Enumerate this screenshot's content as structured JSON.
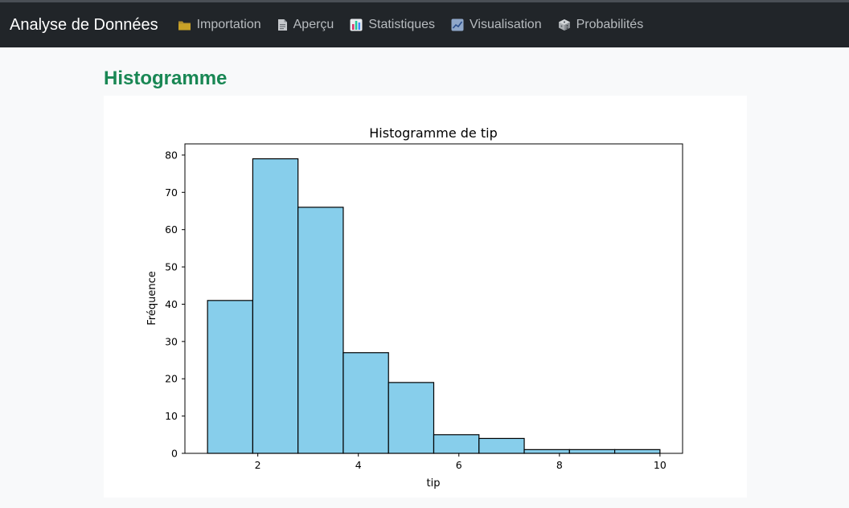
{
  "navbar": {
    "brand": "Analyse de Données",
    "items": [
      {
        "label": "Importation",
        "icon": "folder-icon",
        "color": "#c9a227"
      },
      {
        "label": "Aperçu",
        "icon": "page-icon",
        "color": "#c6c9cc"
      },
      {
        "label": "Statistiques",
        "icon": "bar-chart-icon",
        "color": "#d6336c"
      },
      {
        "label": "Visualisation",
        "icon": "line-chart-icon",
        "color": "#8fa7c9"
      },
      {
        "label": "Probabilités",
        "icon": "die-icon",
        "color": "#c6c9cc"
      }
    ]
  },
  "section": {
    "title": "Histogramme"
  },
  "chart_data": {
    "type": "bar",
    "title": "Histogramme de tip",
    "xlabel": "tip",
    "ylabel": "Fréquence",
    "bin_edges": [
      1.0,
      1.9,
      2.8,
      3.7,
      4.6,
      5.5,
      6.4,
      7.3,
      8.2,
      9.1,
      10.0
    ],
    "values": [
      41,
      79,
      66,
      27,
      19,
      5,
      4,
      1,
      1,
      1
    ],
    "xlim": [
      0.55,
      10.45
    ],
    "ylim": [
      0,
      83
    ],
    "xticks": [
      2,
      4,
      6,
      8,
      10
    ],
    "yticks": [
      0,
      10,
      20,
      30,
      40,
      50,
      60,
      70,
      80
    ],
    "bar_color": "#87ceeb",
    "edge_color": "#000000",
    "grid": false
  }
}
